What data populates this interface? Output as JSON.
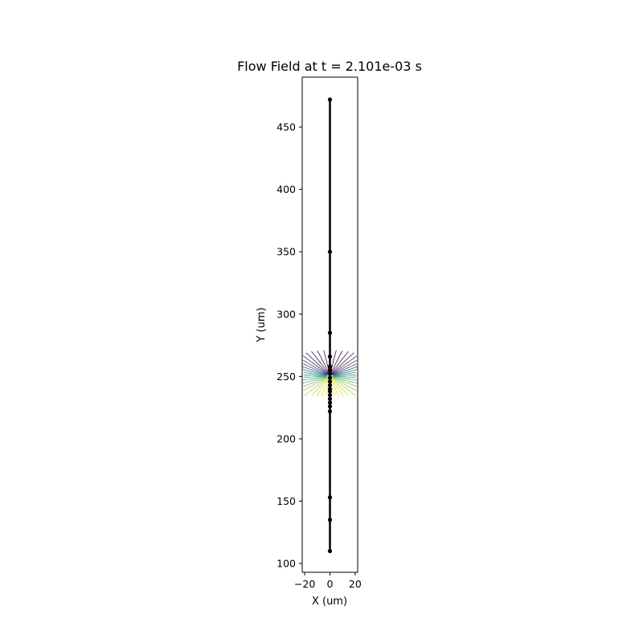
{
  "chart_data": {
    "type": "line",
    "title": "Flow Field at t = 2.101e-03 s",
    "xlabel": "X (um)",
    "ylabel": "Y (um)",
    "xlim": [
      -22,
      22
    ],
    "ylim": [
      93,
      490
    ],
    "x_ticks": [
      -20,
      0,
      20
    ],
    "x_tick_labels": [
      "−20",
      "0",
      "20"
    ],
    "y_ticks": [
      100,
      150,
      200,
      250,
      300,
      350,
      400,
      450
    ],
    "y_tick_labels": [
      "100",
      "150",
      "200",
      "250",
      "300",
      "350",
      "400",
      "450"
    ],
    "grid": false,
    "legend": "none",
    "series": [
      {
        "color": "#000000",
        "marker": "circle",
        "points": [
          [
            0,
            110
          ],
          [
            0,
            135
          ],
          [
            0,
            153
          ],
          [
            0,
            222
          ],
          [
            0,
            226
          ],
          [
            0,
            229
          ],
          [
            0,
            232
          ],
          [
            0,
            235
          ],
          [
            0,
            238
          ],
          [
            0,
            240
          ],
          [
            0,
            243
          ],
          [
            0,
            246
          ],
          [
            0,
            249
          ],
          [
            0,
            252
          ],
          [
            0,
            255
          ],
          [
            0,
            258
          ],
          [
            0,
            266
          ],
          [
            0,
            285
          ],
          [
            0,
            350
          ],
          [
            0,
            472
          ]
        ]
      }
    ],
    "field": {
      "kind": "streamlines",
      "x_range": [
        -22,
        22
      ],
      "y_range": [
        234,
        275
      ],
      "colormap": "viridis",
      "colormap_stops": [
        "#440154",
        "#3b528b",
        "#21918c",
        "#5ec962",
        "#fde725"
      ]
    }
  }
}
